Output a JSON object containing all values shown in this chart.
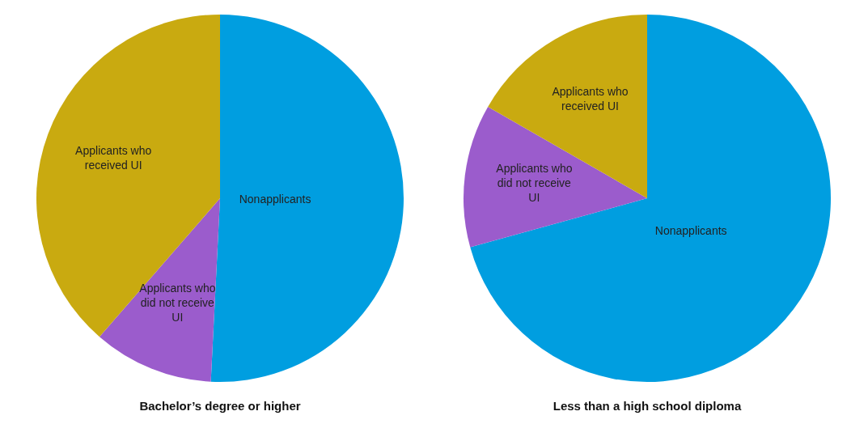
{
  "chart_data": [
    {
      "type": "pie",
      "title": "Bachelor’s degree or higher",
      "categories": [
        "Nonapplicants",
        "Applicants who did not receive UI",
        "Applicants who received UI"
      ],
      "values": [
        50.8,
        10.6,
        38.6
      ],
      "colors": [
        "#009ee0",
        "#9b5ccc",
        "#c9aa10"
      ],
      "legend": false
    },
    {
      "type": "pie",
      "title": "Less than a high school diploma",
      "categories": [
        "Nonapplicants",
        "Applicants who did not receive UI",
        "Applicants who received UI"
      ],
      "values": [
        70.7,
        12.6,
        16.7
      ],
      "colors": [
        "#009ee0",
        "#9b5ccc",
        "#c9aa10"
      ],
      "legend": false
    }
  ]
}
